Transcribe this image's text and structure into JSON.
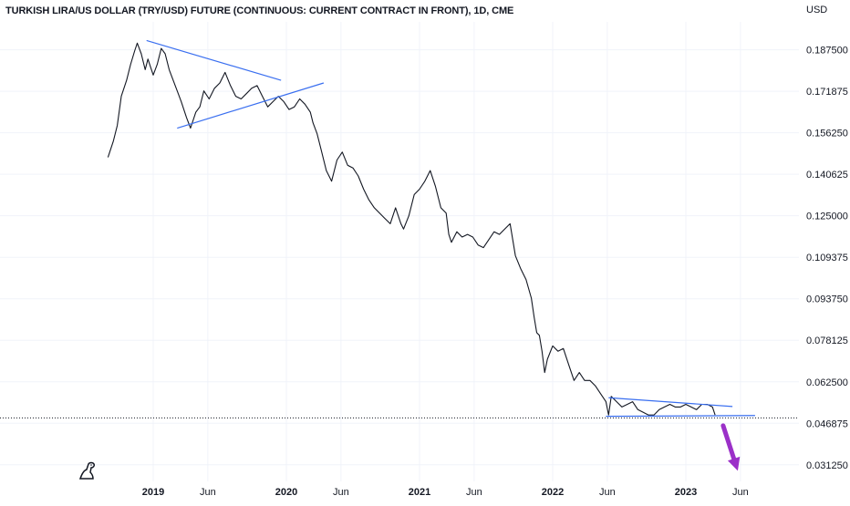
{
  "chart_data": {
    "type": "line",
    "title": "TURKISH LIRA/US DOLLAR (TRY/USD) FUTURE (CONTINUOUS: CURRENT CONTRACT IN FRONT), 1D, CME",
    "currency_label": "USD",
    "xlabel": "",
    "ylabel": "",
    "ylim": [
      0.025,
      0.198
    ],
    "xlim": [
      2018.0,
      2023.85
    ],
    "grid": true,
    "y_ticks": [
      0.1875,
      0.171875,
      0.15625,
      0.140625,
      0.125,
      0.109375,
      0.09375,
      0.078125,
      0.0625,
      0.046875,
      0.03125
    ],
    "y_tick_labels": [
      "0.187500",
      "0.171875",
      "0.156250",
      "0.140625",
      "0.125000",
      "0.109375",
      "0.093750",
      "0.078125",
      "0.062500",
      "0.046875",
      "0.031250"
    ],
    "x_ticks": [
      {
        "label": "2019",
        "x": 2019.0,
        "year": true
      },
      {
        "label": "Jun",
        "x": 2019.41,
        "year": false
      },
      {
        "label": "2020",
        "x": 2020.0,
        "year": true
      },
      {
        "label": "Jun",
        "x": 2020.41,
        "year": false
      },
      {
        "label": "2021",
        "x": 2021.0,
        "year": true
      },
      {
        "label": "Jun",
        "x": 2021.41,
        "year": false
      },
      {
        "label": "2022",
        "x": 2022.0,
        "year": true
      },
      {
        "label": "Jun",
        "x": 2022.41,
        "year": false
      },
      {
        "label": "2023",
        "x": 2023.0,
        "year": true
      },
      {
        "label": "Jun",
        "x": 2023.41,
        "year": false
      }
    ],
    "current_price": 0.0489,
    "series": [
      {
        "color": "#131722",
        "x": [
          2018.66,
          2018.7,
          2018.73,
          2018.76,
          2018.8,
          2018.83,
          2018.86,
          2018.88,
          2018.91,
          2018.94,
          2018.96,
          2019.0,
          2019.03,
          2019.06,
          2019.09,
          2019.12,
          2019.15,
          2019.18,
          2019.21,
          2019.25,
          2019.28,
          2019.32,
          2019.35,
          2019.38,
          2019.42,
          2019.46,
          2019.5,
          2019.54,
          2019.58,
          2019.62,
          2019.66,
          2019.7,
          2019.74,
          2019.78,
          2019.82,
          2019.86,
          2019.9,
          2019.94,
          2019.98,
          2020.02,
          2020.06,
          2020.1,
          2020.14,
          2020.18,
          2020.2,
          2020.23,
          2020.26,
          2020.3,
          2020.34,
          2020.38,
          2020.42,
          2020.46,
          2020.5,
          2020.54,
          2020.58,
          2020.62,
          2020.66,
          2020.7,
          2020.74,
          2020.78,
          2020.82,
          2020.86,
          2020.88,
          2020.92,
          2020.96,
          2021.0,
          2021.04,
          2021.08,
          2021.12,
          2021.16,
          2021.2,
          2021.22,
          2021.24,
          2021.28,
          2021.32,
          2021.36,
          2021.4,
          2021.44,
          2021.48,
          2021.52,
          2021.56,
          2021.6,
          2021.64,
          2021.68,
          2021.72,
          2021.76,
          2021.8,
          2021.84,
          2021.86,
          2021.88,
          2021.9,
          2021.92,
          2021.94,
          2021.96,
          2022.0,
          2022.04,
          2022.08,
          2022.12,
          2022.16,
          2022.2,
          2022.24,
          2022.28,
          2022.32,
          2022.36,
          2022.4,
          2022.42,
          2022.44,
          2022.48,
          2022.52,
          2022.56,
          2022.6,
          2022.64,
          2022.68,
          2022.72,
          2022.76,
          2022.8,
          2022.84,
          2022.88,
          2022.92,
          2022.96,
          2023.0,
          2023.04,
          2023.08,
          2023.12,
          2023.16,
          2023.2,
          2023.22
        ],
        "y": [
          0.147,
          0.153,
          0.159,
          0.17,
          0.176,
          0.182,
          0.187,
          0.19,
          0.186,
          0.18,
          0.184,
          0.178,
          0.182,
          0.188,
          0.186,
          0.18,
          0.176,
          0.172,
          0.168,
          0.162,
          0.158,
          0.164,
          0.166,
          0.172,
          0.169,
          0.173,
          0.175,
          0.179,
          0.174,
          0.17,
          0.169,
          0.171,
          0.173,
          0.174,
          0.17,
          0.166,
          0.168,
          0.17,
          0.168,
          0.165,
          0.166,
          0.169,
          0.167,
          0.164,
          0.16,
          0.156,
          0.15,
          0.142,
          0.138,
          0.146,
          0.149,
          0.144,
          0.143,
          0.14,
          0.135,
          0.131,
          0.128,
          0.126,
          0.124,
          0.122,
          0.128,
          0.122,
          0.12,
          0.125,
          0.133,
          0.135,
          0.138,
          0.142,
          0.136,
          0.128,
          0.126,
          0.118,
          0.115,
          0.119,
          0.117,
          0.118,
          0.117,
          0.114,
          0.113,
          0.116,
          0.119,
          0.118,
          0.12,
          0.122,
          0.11,
          0.105,
          0.101,
          0.094,
          0.087,
          0.081,
          0.08,
          0.074,
          0.066,
          0.071,
          0.076,
          0.074,
          0.075,
          0.069,
          0.063,
          0.066,
          0.063,
          0.063,
          0.061,
          0.058,
          0.055,
          0.05,
          0.057,
          0.055,
          0.053,
          0.054,
          0.055,
          0.052,
          0.051,
          0.05,
          0.05,
          0.052,
          0.053,
          0.054,
          0.053,
          0.053,
          0.054,
          0.053,
          0.052,
          0.054,
          0.054,
          0.053,
          0.05
        ]
      }
    ],
    "trendlines": [
      {
        "color": "#3a6ff0",
        "x1": 2018.95,
        "y1": 0.191,
        "x2": 2019.96,
        "y2": 0.176
      },
      {
        "color": "#3a6ff0",
        "x1": 2019.18,
        "y1": 0.158,
        "x2": 2020.28,
        "y2": 0.175
      },
      {
        "color": "#3a6ff0",
        "x1": 2022.42,
        "y1": 0.0565,
        "x2": 2023.35,
        "y2": 0.0532
      },
      {
        "color": "#3a6ff0",
        "x1": 2022.4,
        "y1": 0.0495,
        "x2": 2023.52,
        "y2": 0.0498
      }
    ],
    "arrow": {
      "color": "#9b30c8",
      "x1": 2023.28,
      "y1": 0.046,
      "x2": 2023.39,
      "y2": 0.029
    }
  }
}
